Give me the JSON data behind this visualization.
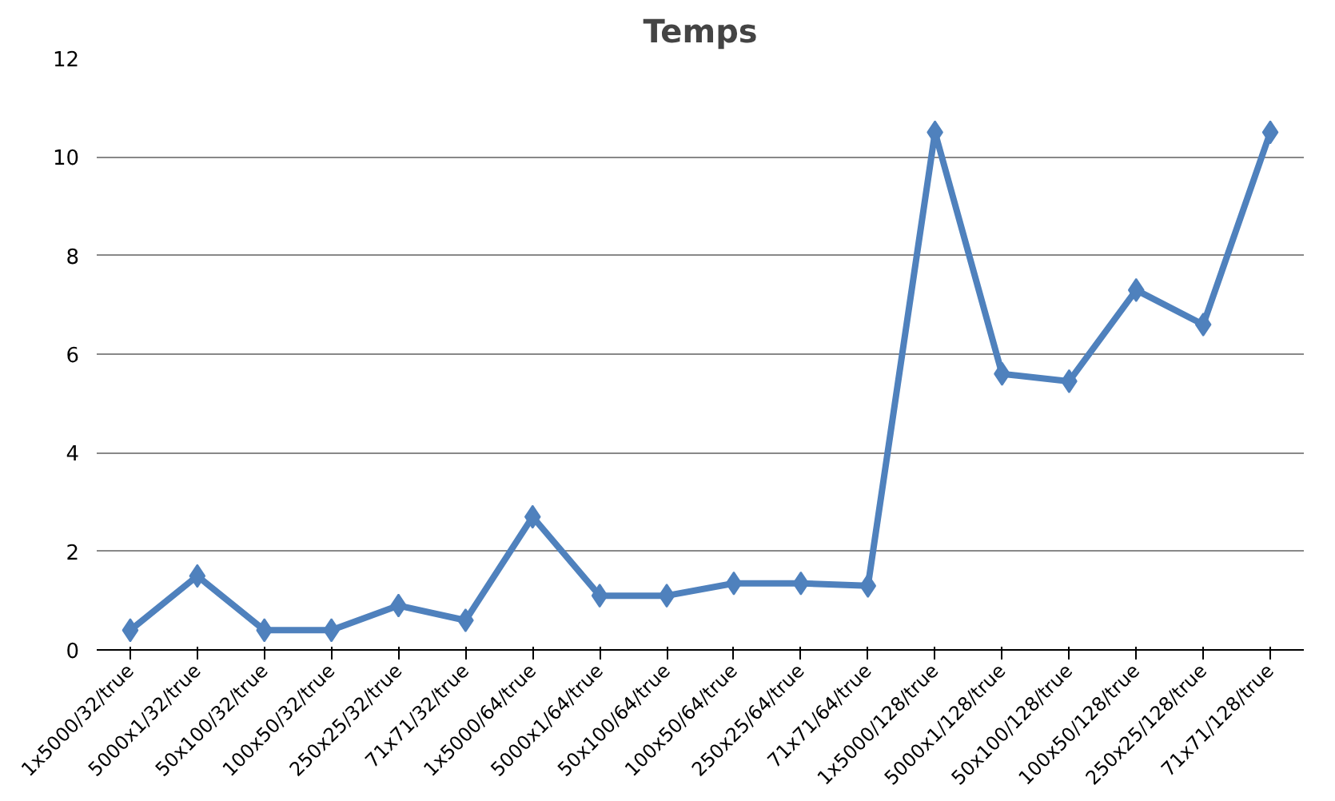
{
  "chart_data": {
    "type": "line",
    "title": "Temps",
    "categories": [
      "1x5000/32/true",
      "5000x1/32/true",
      "50x100/32/true",
      "100x50/32/true",
      "250x25/32/true",
      "71x71/32/true",
      "1x5000/64/true",
      "5000x1/64/true",
      "50x100/64/true",
      "100x50/64/true",
      "250x25/64/true",
      "71x71/64/true",
      "1x5000/128/true",
      "5000x1/128/true",
      "50x100/128/true",
      "100x50/128/true",
      "250x25/128/true",
      "71x71/128/true"
    ],
    "series": [
      {
        "color": "#4f81bd",
        "values": [
          0.4,
          1.5,
          0.4,
          0.4,
          0.9,
          0.6,
          2.7,
          1.1,
          1.1,
          1.35,
          1.35,
          1.3,
          10.5,
          5.6,
          5.45,
          7.3,
          6.6,
          10.5
        ]
      }
    ],
    "ylim": [
      0,
      12
    ],
    "yticks": [
      0,
      2,
      4,
      6,
      8,
      10,
      12
    ],
    "grid": "y",
    "marker": "diamond"
  }
}
